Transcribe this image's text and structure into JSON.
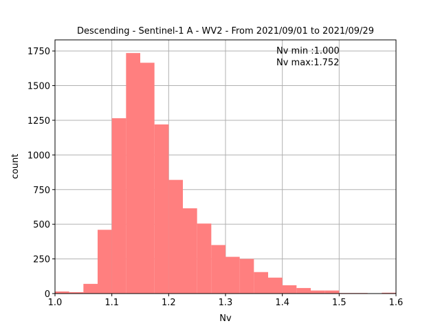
{
  "chart_data": {
    "type": "bar",
    "title": "Descending - Sentinel-1 A - WV2 - From 2021/09/01 to 2021/09/29",
    "xlabel": "Nv",
    "ylabel": "count",
    "xlim": [
      1.0,
      1.6
    ],
    "ylim": [
      0,
      1830
    ],
    "x_ticks": [
      "1.0",
      "1.1",
      "1.2",
      "1.3",
      "1.4",
      "1.5",
      "1.6"
    ],
    "y_ticks": [
      "0",
      "250",
      "500",
      "750",
      "1000",
      "1250",
      "1500",
      "1750"
    ],
    "grid": true,
    "bar_color": "#ff7f7f",
    "bins": [
      {
        "x0": 1.0,
        "x1": 1.025,
        "count": 15
      },
      {
        "x0": 1.025,
        "x1": 1.05,
        "count": 10
      },
      {
        "x0": 1.05,
        "x1": 1.075,
        "count": 70
      },
      {
        "x0": 1.075,
        "x1": 1.1,
        "count": 460
      },
      {
        "x0": 1.1,
        "x1": 1.125,
        "count": 1265
      },
      {
        "x0": 1.125,
        "x1": 1.15,
        "count": 1735
      },
      {
        "x0": 1.15,
        "x1": 1.175,
        "count": 1665
      },
      {
        "x0": 1.175,
        "x1": 1.2,
        "count": 1220
      },
      {
        "x0": 1.2,
        "x1": 1.225,
        "count": 820
      },
      {
        "x0": 1.225,
        "x1": 1.25,
        "count": 615
      },
      {
        "x0": 1.25,
        "x1": 1.275,
        "count": 505
      },
      {
        "x0": 1.275,
        "x1": 1.3,
        "count": 350
      },
      {
        "x0": 1.3,
        "x1": 1.325,
        "count": 265
      },
      {
        "x0": 1.325,
        "x1": 1.35,
        "count": 250
      },
      {
        "x0": 1.35,
        "x1": 1.375,
        "count": 155
      },
      {
        "x0": 1.375,
        "x1": 1.4,
        "count": 115
      },
      {
        "x0": 1.4,
        "x1": 1.425,
        "count": 60
      },
      {
        "x0": 1.425,
        "x1": 1.45,
        "count": 40
      },
      {
        "x0": 1.45,
        "x1": 1.475,
        "count": 22
      },
      {
        "x0": 1.475,
        "x1": 1.5,
        "count": 22
      },
      {
        "x0": 1.5,
        "x1": 1.525,
        "count": 4
      },
      {
        "x0": 1.525,
        "x1": 1.55,
        "count": 4
      },
      {
        "x0": 1.55,
        "x1": 1.575,
        "count": 2
      },
      {
        "x0": 1.575,
        "x1": 1.6,
        "count": 6
      }
    ],
    "annotations": [
      "Nv min :1.000",
      "Nv max:1.752"
    ]
  }
}
